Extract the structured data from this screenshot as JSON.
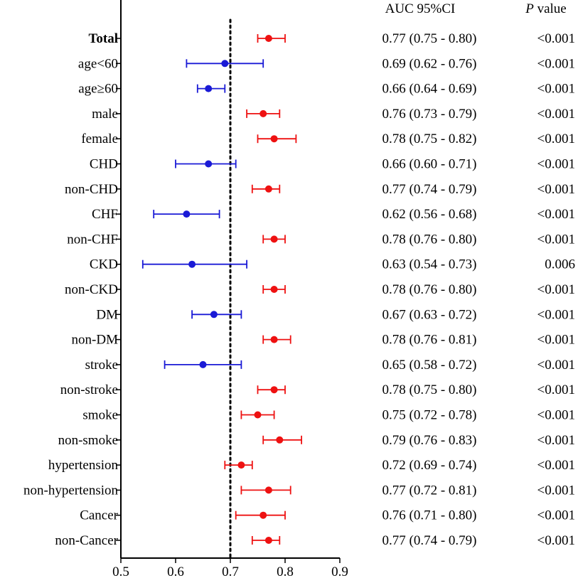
{
  "chart_data": {
    "type": "forest",
    "headers": {
      "auc": "AUC 95%CI",
      "p_italic": "P",
      "p_rest": " value"
    },
    "xlim": [
      0.5,
      0.9
    ],
    "xticks": [
      "0.5",
      "0.6",
      "0.7",
      "0.8",
      "0.9"
    ],
    "reference_line": 0.7,
    "colors": {
      "above": "#ee1111",
      "below": "#1a1ad6"
    },
    "rows": [
      {
        "label": "Total",
        "bold": true,
        "auc": 0.77,
        "lo": 0.75,
        "hi": 0.8,
        "ci_text": "0.77 (0.75 - 0.80)",
        "p_text": "<0.001"
      },
      {
        "label": "age<60",
        "auc": 0.69,
        "lo": 0.62,
        "hi": 0.76,
        "ci_text": "0.69 (0.62 - 0.76)",
        "p_text": "<0.001"
      },
      {
        "label": "age≥60",
        "auc": 0.66,
        "lo": 0.64,
        "hi": 0.69,
        "ci_text": "0.66 (0.64 - 0.69)",
        "p_text": "<0.001"
      },
      {
        "label": "male",
        "auc": 0.76,
        "lo": 0.73,
        "hi": 0.79,
        "ci_text": "0.76 (0.73 - 0.79)",
        "p_text": "<0.001"
      },
      {
        "label": "female",
        "auc": 0.78,
        "lo": 0.75,
        "hi": 0.82,
        "ci_text": "0.78 (0.75 - 0.82)",
        "p_text": "<0.001"
      },
      {
        "label": "CHD",
        "auc": 0.66,
        "lo": 0.6,
        "hi": 0.71,
        "ci_text": "0.66 (0.60 - 0.71)",
        "p_text": "<0.001"
      },
      {
        "label": "non-CHD",
        "auc": 0.77,
        "lo": 0.74,
        "hi": 0.79,
        "ci_text": "0.77 (0.74 - 0.79)",
        "p_text": "<0.001"
      },
      {
        "label": "CHF",
        "auc": 0.62,
        "lo": 0.56,
        "hi": 0.68,
        "ci_text": "0.62 (0.56 - 0.68)",
        "p_text": "<0.001"
      },
      {
        "label": "non-CHF",
        "auc": 0.78,
        "lo": 0.76,
        "hi": 0.8,
        "ci_text": "0.78 (0.76 - 0.80)",
        "p_text": "<0.001"
      },
      {
        "label": "CKD",
        "auc": 0.63,
        "lo": 0.54,
        "hi": 0.73,
        "ci_text": "0.63 (0.54 - 0.73)",
        "p_text": "0.006"
      },
      {
        "label": "non-CKD",
        "auc": 0.78,
        "lo": 0.76,
        "hi": 0.8,
        "ci_text": "0.78 (0.76 - 0.80)",
        "p_text": "<0.001"
      },
      {
        "label": "DM",
        "auc": 0.67,
        "lo": 0.63,
        "hi": 0.72,
        "ci_text": "0.67 (0.63 - 0.72)",
        "p_text": "<0.001"
      },
      {
        "label": "non-DM",
        "auc": 0.78,
        "lo": 0.76,
        "hi": 0.81,
        "ci_text": "0.78 (0.76 - 0.81)",
        "p_text": "<0.001"
      },
      {
        "label": "stroke",
        "auc": 0.65,
        "lo": 0.58,
        "hi": 0.72,
        "ci_text": "0.65 (0.58 - 0.72)",
        "p_text": "<0.001"
      },
      {
        "label": "non-stroke",
        "auc": 0.78,
        "lo": 0.75,
        "hi": 0.8,
        "ci_text": "0.78 (0.75 - 0.80)",
        "p_text": "<0.001"
      },
      {
        "label": "smoke",
        "auc": 0.75,
        "lo": 0.72,
        "hi": 0.78,
        "ci_text": "0.75 (0.72 - 0.78)",
        "p_text": "<0.001"
      },
      {
        "label": "non-smoke",
        "auc": 0.79,
        "lo": 0.76,
        "hi": 0.83,
        "ci_text": "0.79 (0.76 - 0.83)",
        "p_text": "<0.001"
      },
      {
        "label": "hypertension",
        "auc": 0.72,
        "lo": 0.69,
        "hi": 0.74,
        "ci_text": "0.72 (0.69 - 0.74)",
        "p_text": "<0.001"
      },
      {
        "label": "non-hypertension",
        "auc": 0.77,
        "lo": 0.72,
        "hi": 0.81,
        "ci_text": "0.77 (0.72 - 0.81)",
        "p_text": "<0.001"
      },
      {
        "label": "Cancer",
        "auc": 0.76,
        "lo": 0.71,
        "hi": 0.8,
        "ci_text": "0.76 (0.71 - 0.80)",
        "p_text": "<0.001"
      },
      {
        "label": "non-Cancer",
        "auc": 0.77,
        "lo": 0.74,
        "hi": 0.79,
        "ci_text": "0.77 (0.74 - 0.79)",
        "p_text": "<0.001"
      }
    ]
  }
}
